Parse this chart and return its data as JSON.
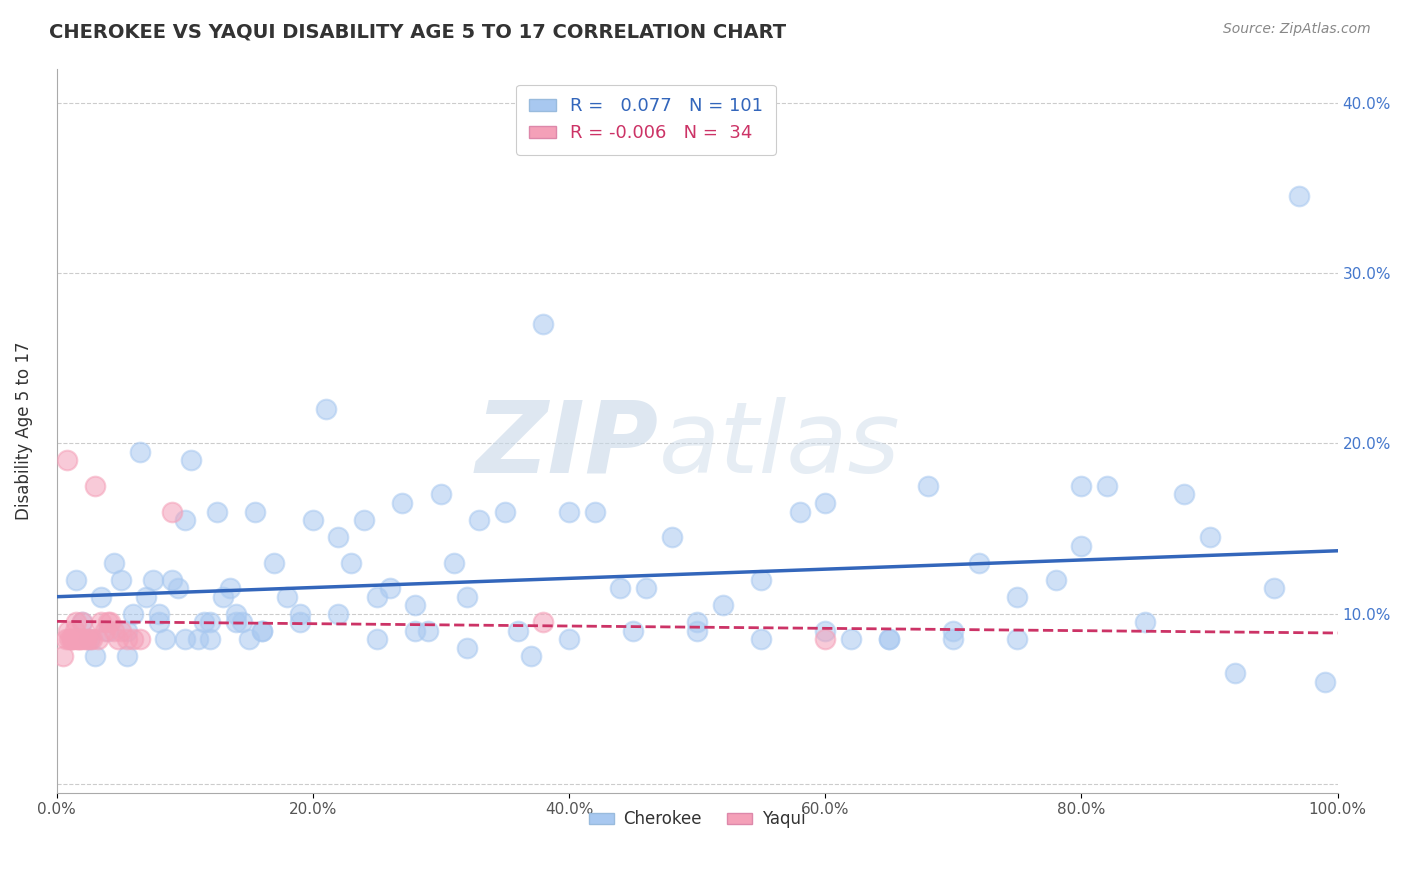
{
  "title": "CHEROKEE VS YAQUI DISABILITY AGE 5 TO 17 CORRELATION CHART",
  "source": "Source: ZipAtlas.com",
  "xlabel": "",
  "ylabel": "Disability Age 5 to 17",
  "legend_labels": [
    "Cherokee",
    "Yaqui"
  ],
  "cherokee_R": 0.077,
  "cherokee_N": 101,
  "yaqui_R": -0.006,
  "yaqui_N": 34,
  "cherokee_color": "#a8c8f0",
  "yaqui_color": "#f4a0b8",
  "cherokee_line_color": "#3366bb",
  "yaqui_line_color": "#cc3366",
  "background_color": "#ffffff",
  "grid_color": "#cccccc",
  "title_color": "#333333",
  "xlim": [
    0.0,
    1.0
  ],
  "ylim": [
    -0.005,
    0.42
  ],
  "cherokee_x": [
    0.015,
    0.02,
    0.025,
    0.03,
    0.035,
    0.04,
    0.045,
    0.05,
    0.055,
    0.06,
    0.065,
    0.07,
    0.075,
    0.08,
    0.085,
    0.09,
    0.095,
    0.1,
    0.105,
    0.11,
    0.115,
    0.12,
    0.125,
    0.13,
    0.135,
    0.14,
    0.145,
    0.15,
    0.155,
    0.16,
    0.17,
    0.18,
    0.19,
    0.2,
    0.21,
    0.22,
    0.23,
    0.24,
    0.25,
    0.26,
    0.27,
    0.28,
    0.29,
    0.3,
    0.31,
    0.32,
    0.33,
    0.35,
    0.37,
    0.38,
    0.4,
    0.42,
    0.44,
    0.46,
    0.48,
    0.5,
    0.52,
    0.55,
    0.58,
    0.6,
    0.62,
    0.65,
    0.68,
    0.7,
    0.72,
    0.75,
    0.78,
    0.8,
    0.82,
    0.85,
    0.88,
    0.9,
    0.92,
    0.95,
    0.97,
    0.99,
    0.055,
    0.08,
    0.1,
    0.12,
    0.14,
    0.16,
    0.19,
    0.22,
    0.25,
    0.28,
    0.32,
    0.36,
    0.4,
    0.45,
    0.5,
    0.55,
    0.6,
    0.65,
    0.7,
    0.75,
    0.8
  ],
  "cherokee_y": [
    0.12,
    0.095,
    0.085,
    0.075,
    0.11,
    0.09,
    0.13,
    0.12,
    0.09,
    0.1,
    0.195,
    0.11,
    0.12,
    0.1,
    0.085,
    0.12,
    0.115,
    0.155,
    0.19,
    0.085,
    0.095,
    0.095,
    0.16,
    0.11,
    0.115,
    0.1,
    0.095,
    0.085,
    0.16,
    0.09,
    0.13,
    0.11,
    0.1,
    0.155,
    0.22,
    0.145,
    0.13,
    0.155,
    0.11,
    0.115,
    0.165,
    0.105,
    0.09,
    0.17,
    0.13,
    0.11,
    0.155,
    0.16,
    0.075,
    0.27,
    0.16,
    0.16,
    0.115,
    0.115,
    0.145,
    0.095,
    0.105,
    0.12,
    0.16,
    0.165,
    0.085,
    0.085,
    0.175,
    0.085,
    0.13,
    0.11,
    0.12,
    0.14,
    0.175,
    0.095,
    0.17,
    0.145,
    0.065,
    0.115,
    0.345,
    0.06,
    0.075,
    0.095,
    0.085,
    0.085,
    0.095,
    0.09,
    0.095,
    0.1,
    0.085,
    0.09,
    0.08,
    0.09,
    0.085,
    0.09,
    0.09,
    0.085,
    0.09,
    0.085,
    0.09,
    0.085,
    0.175
  ],
  "yaqui_x": [
    0.005,
    0.007,
    0.008,
    0.009,
    0.01,
    0.011,
    0.012,
    0.013,
    0.014,
    0.015,
    0.016,
    0.017,
    0.018,
    0.019,
    0.02,
    0.022,
    0.024,
    0.026,
    0.028,
    0.03,
    0.032,
    0.035,
    0.038,
    0.04,
    0.042,
    0.045,
    0.048,
    0.05,
    0.055,
    0.06,
    0.065,
    0.09,
    0.38,
    0.6
  ],
  "yaqui_y": [
    0.075,
    0.085,
    0.19,
    0.09,
    0.085,
    0.085,
    0.085,
    0.085,
    0.09,
    0.095,
    0.085,
    0.085,
    0.085,
    0.085,
    0.095,
    0.085,
    0.085,
    0.085,
    0.085,
    0.175,
    0.085,
    0.095,
    0.09,
    0.095,
    0.095,
    0.09,
    0.085,
    0.09,
    0.085,
    0.085,
    0.085,
    0.16,
    0.095,
    0.085
  ]
}
